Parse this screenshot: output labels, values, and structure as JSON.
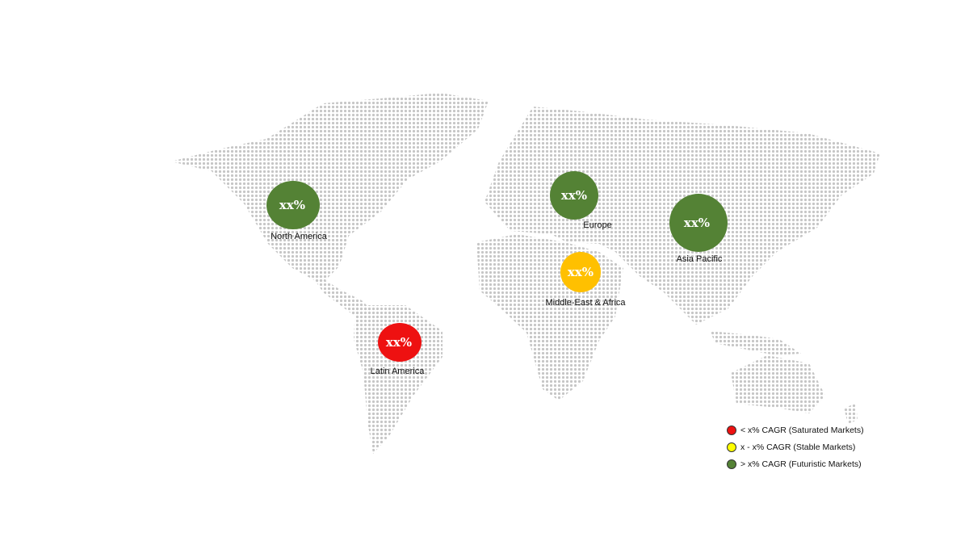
{
  "colors": {
    "saturated": "#ee1111",
    "stable": "#ffff00",
    "futuristic": "#548235",
    "mea_bubble": "#ffc000",
    "map_dots": "#c6c6c6"
  },
  "regions": [
    {
      "name": "North America",
      "value": "xx%",
      "category": "futuristic"
    },
    {
      "name": "Europe",
      "value": "xx%",
      "category": "futuristic"
    },
    {
      "name": "Asia Pacific",
      "value": "xx%",
      "category": "futuristic"
    },
    {
      "name": "Middle-East & Africa",
      "value": "xx%",
      "category": "stable"
    },
    {
      "name": "Latin America",
      "value": "xx%",
      "category": "saturated"
    }
  ],
  "legend": [
    {
      "label": "< x% CAGR (Saturated Markets)",
      "color": "#ee1111"
    },
    {
      "label": "x - x% CAGR (Stable Markets)",
      "color": "#ffff00"
    },
    {
      "label": "> x% CAGR (Futuristic Markets)",
      "color": "#548235"
    }
  ]
}
